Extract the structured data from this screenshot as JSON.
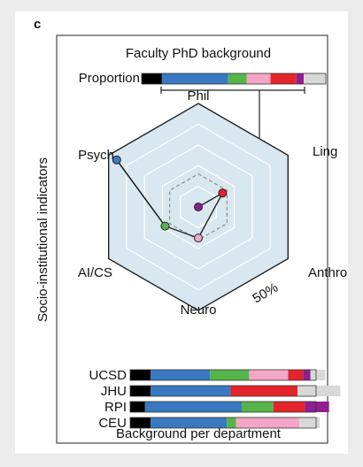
{
  "panel_label": "c",
  "chart_data": {
    "type": "radar",
    "title": "Faculty PhD background",
    "ylabel": "Socio-institutional indicators",
    "axes": [
      "Phil",
      "Ling",
      "Anthro",
      "Neuro",
      "AI/CS",
      "Psych"
    ],
    "rings": 5,
    "ring_label": "50%",
    "overall_profile": [
      0.02,
      0.02,
      0.02,
      0.02,
      0.02,
      0.02
    ],
    "series": [
      {
        "color": "#3a78c2",
        "values": [
          0.0,
          0.0,
          0.0,
          0.0,
          0.0,
          0.91
        ]
      },
      {
        "color": "#8e1f8f",
        "values": [
          0.0,
          0.0,
          0.0,
          0.0,
          0.0,
          0.0
        ]
      },
      {
        "color": "#e4242a",
        "values": [
          0.0,
          0.27,
          0.0,
          0.0,
          0.0,
          0.0
        ]
      },
      {
        "color": "#f3a6c6",
        "values": [
          0.0,
          0.0,
          0.0,
          0.3,
          0.0,
          0.0
        ]
      },
      {
        "color": "#55b44a",
        "values": [
          0.0,
          0.0,
          0.0,
          0.0,
          0.37,
          0.0
        ]
      }
    ],
    "proportion": {
      "label": "Proportion",
      "segments": [
        {
          "color": "#000000",
          "value": 0.11
        },
        {
          "color": "#3a78c2",
          "value": 0.36
        },
        {
          "color": "#55b44a",
          "value": 0.1
        },
        {
          "color": "#f3a6c6",
          "value": 0.13
        },
        {
          "color": "#e4242a",
          "value": 0.14
        },
        {
          "color": "#8e1f8f",
          "value": 0.04
        },
        {
          "color": "#d8d8d8",
          "value": 0.12
        }
      ]
    },
    "departments": {
      "title": "Background per department",
      "rows": [
        {
          "name": "UCSD",
          "segments": [
            {
              "color": "#000000",
              "value": 0.11
            },
            {
              "color": "#3a78c2",
              "value": 0.32
            },
            {
              "color": "#55b44a",
              "value": 0.21
            },
            {
              "color": "#f3a6c6",
              "value": 0.21
            },
            {
              "color": "#e4242a",
              "value": 0.08
            },
            {
              "color": "#8e1f8f",
              "value": 0.04
            },
            {
              "color": "#d8d8d8",
              "value": 0.08
            }
          ]
        },
        {
          "name": "JHU",
          "segments": [
            {
              "color": "#000000",
              "value": 0.11
            },
            {
              "color": "#3a78c2",
              "value": 0.43
            },
            {
              "color": "#e4242a",
              "value": 0.36
            },
            {
              "color": "#d8d8d8",
              "value": 0.23
            }
          ]
        },
        {
          "name": "RPI",
          "segments": [
            {
              "color": "#000000",
              "value": 0.08
            },
            {
              "color": "#3a78c2",
              "value": 0.52
            },
            {
              "color": "#55b44a",
              "value": 0.17
            },
            {
              "color": "#e4242a",
              "value": 0.17
            },
            {
              "color": "#8e1f8f",
              "value": 0.13
            }
          ]
        },
        {
          "name": "CEU",
          "segments": [
            {
              "color": "#000000",
              "value": 0.11
            },
            {
              "color": "#3a78c2",
              "value": 0.41
            },
            {
              "color": "#55b44a",
              "value": 0.05
            },
            {
              "color": "#f3a6c6",
              "value": 0.34
            },
            {
              "color": "#d8d8d8",
              "value": 0.11
            }
          ]
        }
      ]
    },
    "colors": {
      "radar_fill": "#d9e8f0",
      "grid": "#ffffff",
      "frame": "#222222",
      "profile": "#8a8a8a"
    }
  }
}
